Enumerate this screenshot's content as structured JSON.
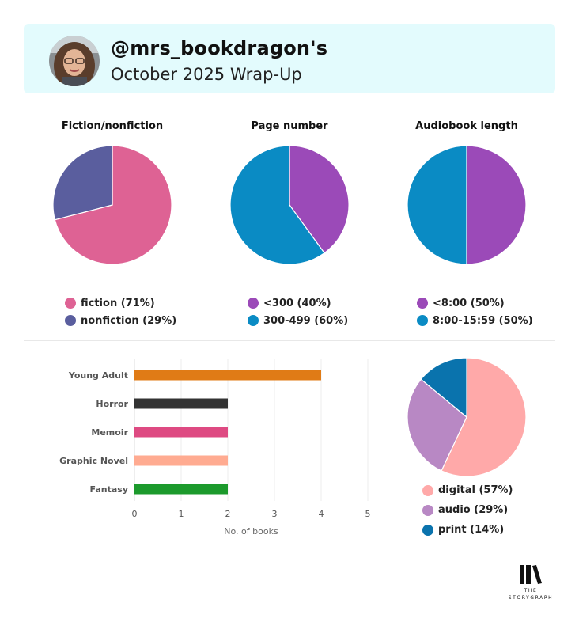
{
  "header": {
    "username": "@mrs_bookdragon's",
    "subtitle": "October 2025 Wrap-Up"
  },
  "logo": {
    "line1": "THE",
    "line2": "STORYGRAPH"
  },
  "chart_data": [
    {
      "type": "pie",
      "title": "Fiction/nonfiction",
      "slices": [
        {
          "label": "fiction (71%)",
          "value": 71,
          "color": "#de6294"
        },
        {
          "label": "nonfiction (29%)",
          "value": 29,
          "color": "#5a5e9e"
        }
      ],
      "legend": "bottom"
    },
    {
      "type": "pie",
      "title": "Page number",
      "slices": [
        {
          "label": "<300 (40%)",
          "value": 40,
          "color": "#9b4ab8"
        },
        {
          "label": "300-499 (60%)",
          "value": 60,
          "color": "#0a8bc4"
        }
      ],
      "legend": "bottom"
    },
    {
      "type": "pie",
      "title": "Audiobook length",
      "slices": [
        {
          "label": "<8:00 (50%)",
          "value": 50,
          "color": "#9b4ab8"
        },
        {
          "label": "8:00-15:59 (50%)",
          "value": 50,
          "color": "#0a8bc4"
        }
      ],
      "legend": "bottom"
    },
    {
      "type": "bar",
      "orientation": "horizontal",
      "title": "",
      "xlabel": "No. of books",
      "xlim": [
        0,
        5
      ],
      "xticks": [
        0,
        1,
        2,
        3,
        4,
        5
      ],
      "grid": true,
      "categories": [
        "Young Adult",
        "Horror",
        "Memoir",
        "Graphic Novel",
        "Fantasy"
      ],
      "values": [
        4,
        2,
        2,
        2,
        2
      ],
      "colors": [
        "#e07b16",
        "#333333",
        "#de4a82",
        "#ffab91",
        "#1c9a2c"
      ]
    },
    {
      "type": "pie",
      "title": "",
      "slices": [
        {
          "label": "digital (57%)",
          "value": 57,
          "color": "#ffa9a9"
        },
        {
          "label": "audio (29%)",
          "value": 29,
          "color": "#b888c4"
        },
        {
          "label": "print (14%)",
          "value": 14,
          "color": "#0a73ad"
        }
      ],
      "legend": "bottom"
    }
  ]
}
